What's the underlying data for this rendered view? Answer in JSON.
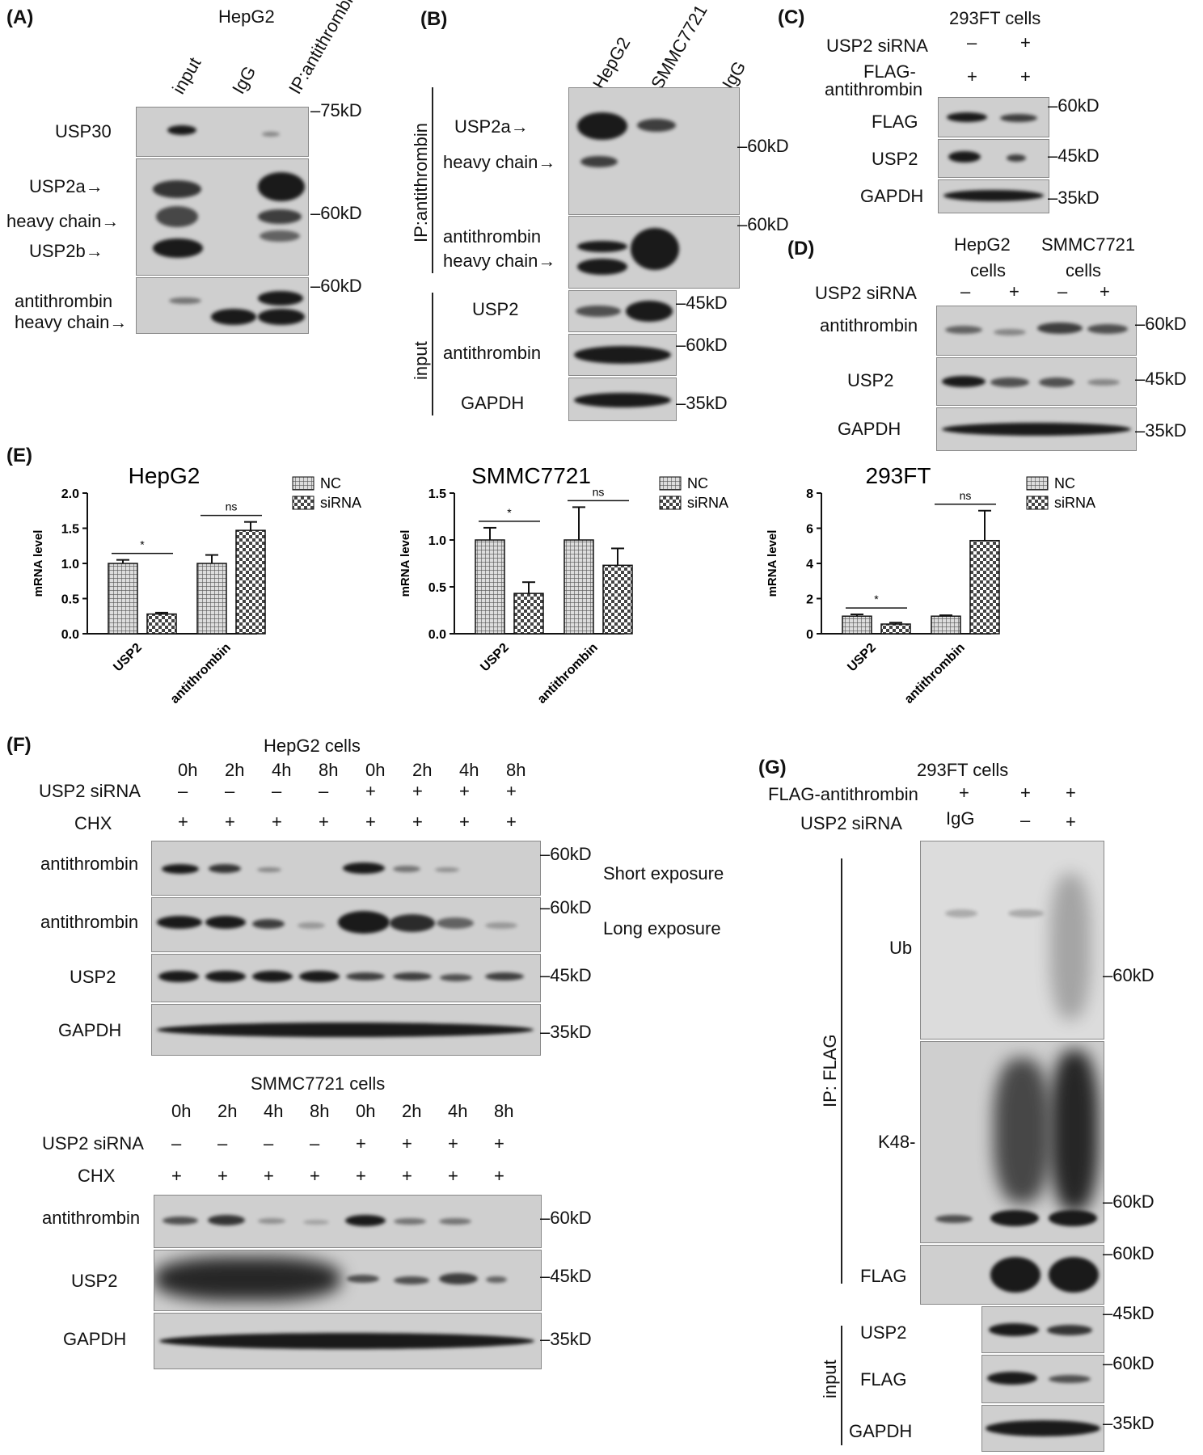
{
  "panels": {
    "A": {
      "letter": "(A)",
      "cell": "HepG2",
      "lanes": [
        "input",
        "IgG",
        "IP:antithrombin"
      ],
      "rows": [
        "USP30",
        "USP2a→",
        "heavy chain→",
        "USP2b→",
        "antithrombin",
        "heavy chain→"
      ],
      "markers": [
        "75kD",
        "60kD",
        "60kD"
      ]
    },
    "B": {
      "letter": "(B)",
      "lanes": [
        "HepG2",
        "SMMC7721",
        "IgG"
      ],
      "group_ip": "IP:antithrombin",
      "group_input": "input",
      "rows": [
        "USP2a→",
        "heavy chain→",
        "antithrombin",
        "heavy chain→",
        "USP2",
        "antithrombin",
        "GAPDH"
      ],
      "markers": [
        "60kD",
        "60kD",
        "45kD",
        "60kD",
        "35kD"
      ]
    },
    "C": {
      "letter": "(C)",
      "cell": "293FT cells",
      "cond1": "USP2 siRNA",
      "cond1_vals": [
        "–",
        "+"
      ],
      "cond2a": "FLAG-",
      "cond2b": "antithrombin",
      "cond2_vals": [
        "+",
        "+"
      ],
      "rows": [
        "FLAG",
        "USP2",
        "GAPDH"
      ],
      "markers": [
        "60kD",
        "45kD",
        "35kD"
      ]
    },
    "D": {
      "letter": "(D)",
      "cell1a": "HepG2",
      "cell1b": "cells",
      "cell2a": "SMMC7721",
      "cell2b": "cells",
      "cond": "USP2 siRNA",
      "cond_vals": [
        "–",
        "+",
        "–",
        "+"
      ],
      "rows": [
        "antithrombin",
        "USP2",
        "GAPDH"
      ],
      "markers": [
        "60kD",
        "45kD",
        "35kD"
      ]
    },
    "E": {
      "letter": "(E)"
    },
    "F": {
      "letter": "(F)",
      "cell_top": "HepG2  cells",
      "cell_bottom": "SMMC7721 cells",
      "times": [
        "0h",
        "2h",
        "4h",
        "8h",
        "0h",
        "2h",
        "4h",
        "8h"
      ],
      "cond1": "USP2 siRNA",
      "cond1_vals": [
        "–",
        "–",
        "–",
        "–",
        "+",
        "+",
        "+",
        "+"
      ],
      "cond2": "CHX",
      "cond2_vals": [
        "+",
        "+",
        "+",
        "+",
        "+",
        "+",
        "+",
        "+"
      ],
      "rows_top": [
        "antithrombin",
        "antithrombin",
        "USP2",
        "GAPDH"
      ],
      "notes": [
        "Short exposure",
        "Long exposure"
      ],
      "markers_top": [
        "60kD",
        "60kD",
        "45kD",
        "35kD"
      ],
      "rows_bottom": [
        "antithrombin",
        "USP2",
        "GAPDH"
      ],
      "markers_bottom": [
        "60kD",
        "45kD",
        "35kD"
      ]
    },
    "G": {
      "letter": "(G)",
      "cell": "293FT cells",
      "cond1": "FLAG-antithrombin",
      "cond1_vals": [
        "+",
        "+",
        "+"
      ],
      "cond2": "USP2 siRNA",
      "cond2_vals": [
        "IgG",
        "–",
        "+"
      ],
      "group_ip": "IP: FLAG",
      "group_input": "input",
      "rows": [
        "Ub",
        "K48-",
        "FLAG",
        "USP2",
        "FLAG",
        "GAPDH"
      ],
      "markers": [
        "60kD",
        "60kD",
        "60kD",
        "45kD",
        "60kD",
        "35kD"
      ]
    }
  },
  "chart_data": [
    {
      "type": "bar",
      "title": "HepG2",
      "ylabel": "mRNA level",
      "categories": [
        "USP2",
        "antithrombin"
      ],
      "ylim": [
        0,
        2.0
      ],
      "yticks": [
        "0.0",
        "0.5",
        "1.0",
        "1.5",
        "2.0"
      ],
      "series": [
        {
          "name": "NC",
          "values": [
            1.0,
            1.0
          ],
          "errors": [
            0.05,
            0.12
          ]
        },
        {
          "name": "siRNA",
          "values": [
            0.28,
            1.47
          ],
          "errors": [
            0.02,
            0.12
          ]
        }
      ],
      "significance": [
        "*",
        "ns"
      ]
    },
    {
      "type": "bar",
      "title": "SMMC7721",
      "ylabel": "mRNA level",
      "categories": [
        "USP2",
        "antithrombin"
      ],
      "ylim": [
        0,
        1.5
      ],
      "yticks": [
        "0.0",
        "0.5",
        "1.0",
        "1.5"
      ],
      "series": [
        {
          "name": "NC",
          "values": [
            1.0,
            1.0
          ],
          "errors": [
            0.13,
            0.35
          ]
        },
        {
          "name": "siRNA",
          "values": [
            0.43,
            0.73
          ],
          "errors": [
            0.12,
            0.18
          ]
        }
      ],
      "significance": [
        "*",
        "ns"
      ]
    },
    {
      "type": "bar",
      "title": "293FT",
      "ylabel": "mRNA level",
      "categories": [
        "USP2",
        "antithrombin"
      ],
      "ylim": [
        0,
        8
      ],
      "yticks": [
        "0",
        "2",
        "4",
        "6",
        "8"
      ],
      "series": [
        {
          "name": "NC",
          "values": [
            1.0,
            1.0
          ],
          "errors": [
            0.1,
            0.05
          ]
        },
        {
          "name": "siRNA",
          "values": [
            0.55,
            5.3
          ],
          "errors": [
            0.08,
            1.7
          ]
        }
      ],
      "significance": [
        "*",
        "ns"
      ]
    }
  ]
}
